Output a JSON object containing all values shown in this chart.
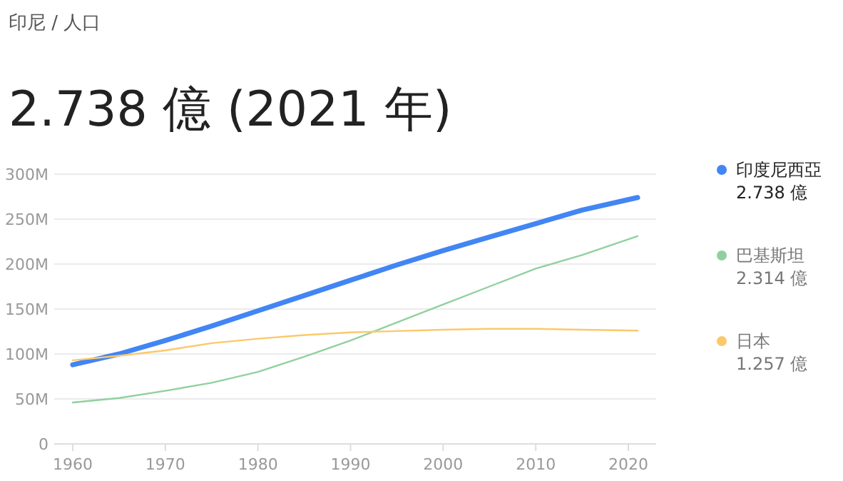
{
  "chart_data": {
    "type": "line",
    "title": "2.738 億 (2021 年)",
    "annotations": [
      "印尼 / 人口",
      "2.738 億",
      "2.314 億",
      "1.257 億"
    ],
    "x": [
      1960,
      1965,
      1970,
      1975,
      1980,
      1985,
      1990,
      1995,
      2000,
      2005,
      2010,
      2015,
      2021
    ],
    "series": [
      {
        "name": "印度尼西亞",
        "color": "#4285f4",
        "values": [
          88,
          100,
          115,
          131,
          148,
          165,
          182,
          199,
          215,
          230,
          245,
          260,
          274
        ]
      },
      {
        "name": "巴基斯坦",
        "color": "#8fd19e",
        "values": [
          46,
          51,
          59,
          68,
          80,
          97,
          115,
          135,
          155,
          175,
          195,
          210,
          231
        ]
      },
      {
        "name": "日本",
        "color": "#fbc96b",
        "values": [
          93,
          98,
          104,
          112,
          117,
          121,
          124,
          125.5,
          127,
          128,
          128,
          127,
          126
        ]
      }
    ],
    "xlim": [
      1958,
      2023
    ],
    "xticks": [
      1960,
      1970,
      1980,
      1990,
      2000,
      2010,
      2020
    ],
    "ylim": [
      0,
      300
    ],
    "yticks": [
      {
        "value": 0,
        "label": "0"
      },
      {
        "value": 50,
        "label": "50M"
      },
      {
        "value": 100,
        "label": "100M"
      },
      {
        "value": 150,
        "label": "150M"
      },
      {
        "value": 200,
        "label": "200M"
      },
      {
        "value": 250,
        "label": "250M"
      },
      {
        "value": 300,
        "label": "300M"
      }
    ],
    "grid": "y",
    "legend": "right",
    "marker": "none",
    "line_style": "solid"
  }
}
